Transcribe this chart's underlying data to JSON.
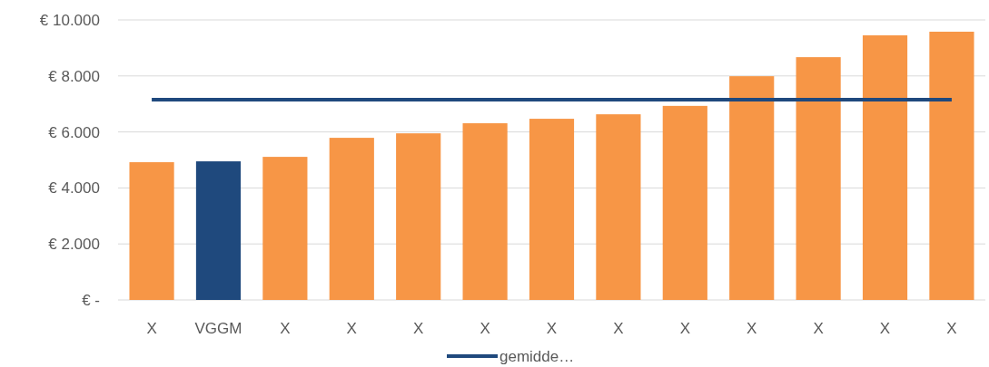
{
  "chart_data": {
    "type": "bar",
    "categories": [
      "X",
      "VGGM",
      "X",
      "X",
      "X",
      "X",
      "X",
      "X",
      "X",
      "X",
      "X",
      "X",
      "X"
    ],
    "series": [
      {
        "colors": [
          "#f79646",
          "#1f497d",
          "#f79646",
          "#f79646",
          "#f79646",
          "#f79646",
          "#f79646",
          "#f79646",
          "#f79646",
          "#f79646",
          "#f79646",
          "#f79646",
          "#f79646"
        ],
        "values": [
          4920,
          4950,
          5110,
          5790,
          5950,
          6310,
          6470,
          6630,
          6930,
          7990,
          8670,
          9450,
          9580
        ]
      },
      {
        "type": "line",
        "name": "gemidde…",
        "color": "#1f497d",
        "values": [
          7150,
          7150,
          7150,
          7150,
          7150,
          7150,
          7150,
          7150,
          7150,
          7150,
          7150,
          7150,
          7150
        ]
      }
    ],
    "ylim": [
      0,
      10000
    ],
    "yticks": [
      {
        "value": 0,
        "label": "€ -"
      },
      {
        "value": 2000,
        "label": "€ 2.000"
      },
      {
        "value": 4000,
        "label": "€ 4.000"
      },
      {
        "value": 6000,
        "label": "€ 6.000"
      },
      {
        "value": 8000,
        "label": "€ 8.000"
      },
      {
        "value": 10000,
        "label": "€ 10.000"
      }
    ],
    "grid": "y",
    "legend": "bottom",
    "marker": "none",
    "line_style": "solid"
  }
}
